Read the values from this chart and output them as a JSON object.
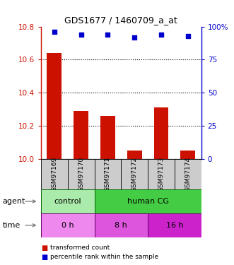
{
  "title": "GDS1677 / 1460709_a_at",
  "samples": [
    "GSM97169",
    "GSM97170",
    "GSM97171",
    "GSM97172",
    "GSM97173",
    "GSM97174"
  ],
  "bar_values": [
    10.64,
    10.29,
    10.26,
    10.05,
    10.31,
    10.05
  ],
  "dot_values": [
    96,
    94,
    94,
    92,
    94,
    93
  ],
  "ylim_left": [
    10.0,
    10.8
  ],
  "ylim_right": [
    0,
    100
  ],
  "yticks_left": [
    10.0,
    10.2,
    10.4,
    10.6,
    10.8
  ],
  "yticks_right": [
    0,
    25,
    50,
    75,
    100
  ],
  "bar_color": "#cc1100",
  "dot_color": "#0000cc",
  "agent_labels": [
    {
      "label": "control",
      "span": [
        0,
        2
      ],
      "color": "#aaeaaa"
    },
    {
      "label": "human CG",
      "span": [
        2,
        6
      ],
      "color": "#44cc44"
    }
  ],
  "time_labels": [
    {
      "label": "0 h",
      "span": [
        0,
        2
      ],
      "color": "#ee88ee"
    },
    {
      "label": "8 h",
      "span": [
        2,
        4
      ],
      "color": "#dd55dd"
    },
    {
      "label": "16 h",
      "span": [
        4,
        6
      ],
      "color": "#cc22cc"
    }
  ],
  "legend_items": [
    {
      "color": "#cc1100",
      "label": "transformed count"
    },
    {
      "color": "#0000cc",
      "label": "percentile rank within the sample"
    }
  ],
  "sample_box_color": "#cccccc",
  "right_axis_label": "100%"
}
